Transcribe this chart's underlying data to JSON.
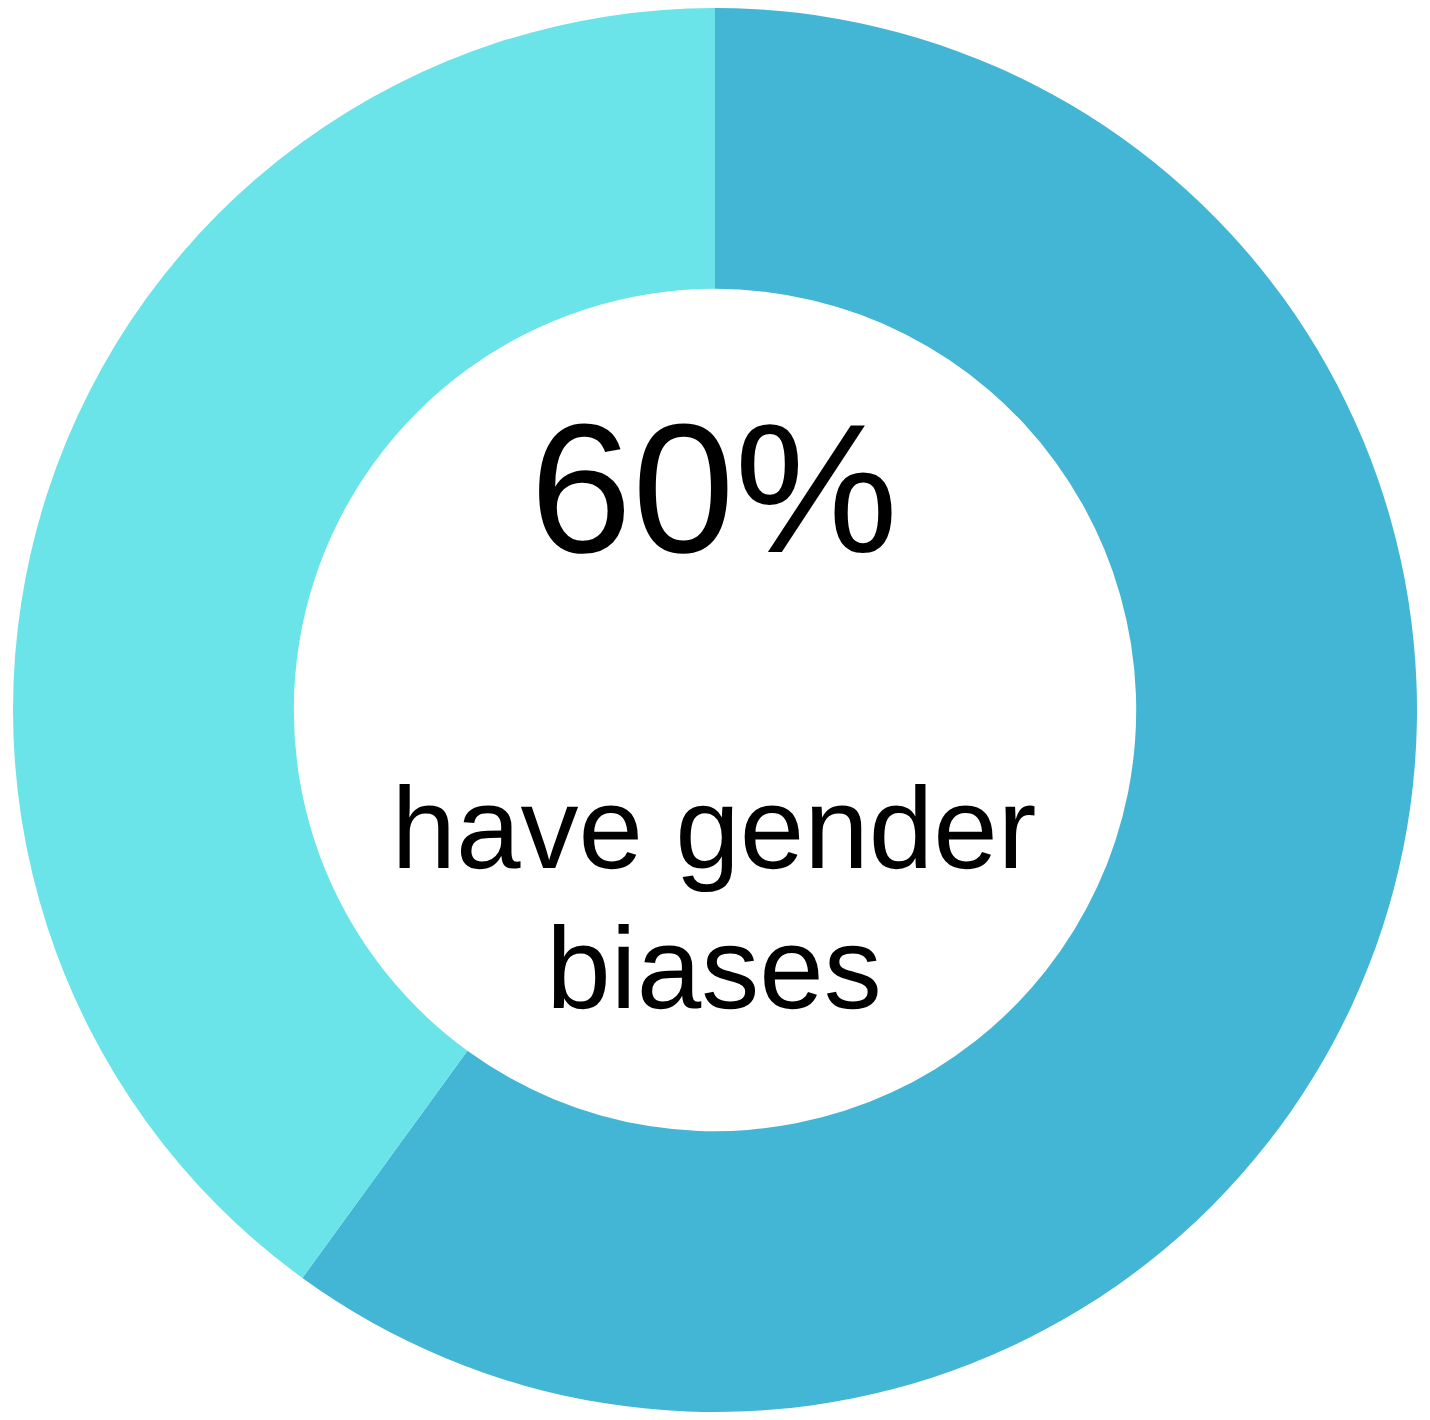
{
  "chart_data": {
    "type": "donut",
    "categories": [
      null,
      null
    ],
    "values": [
      60,
      40
    ],
    "colors": [
      "#43b6d6",
      "#6ae4e8"
    ],
    "annotations": [
      "60%",
      "have gender biases"
    ],
    "legend": false
  }
}
